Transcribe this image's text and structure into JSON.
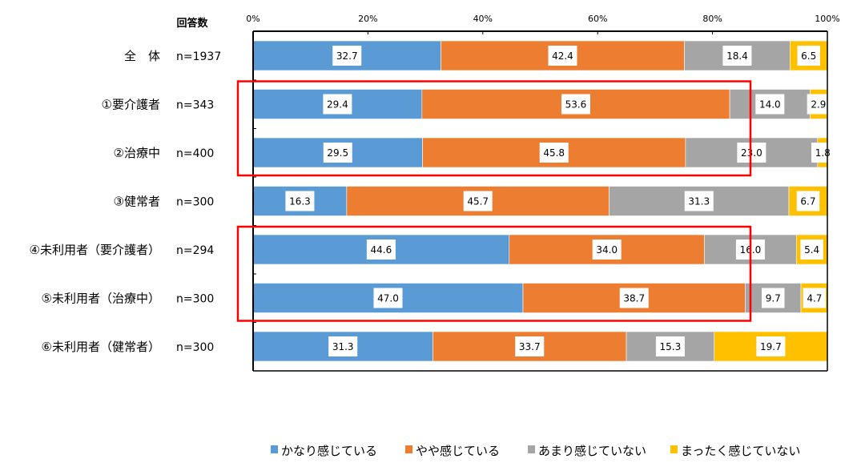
{
  "chart_data": {
    "type": "bar",
    "orientation": "horizontal-stacked-100",
    "n_header": "回答数",
    "categories": [
      "全　体",
      "①要介護者",
      "②治療中",
      "③健常者",
      "④未利用者（要介護者）",
      "⑤未利用者（治療中）",
      "⑥未利用者（健常者）"
    ],
    "n_labels": [
      "n=1937",
      "n=343",
      "n=400",
      "n=300",
      "n=294",
      "n=300",
      "n=300"
    ],
    "series": [
      {
        "name": "かなり感じている",
        "color": "#5B9BD5",
        "values": [
          32.7,
          29.4,
          29.5,
          16.3,
          44.6,
          47.0,
          31.3
        ]
      },
      {
        "name": "やや感じている",
        "color": "#ED7D31",
        "values": [
          42.4,
          53.6,
          45.8,
          45.7,
          34.0,
          38.7,
          33.7
        ]
      },
      {
        "name": "あまり感じていない",
        "color": "#A5A5A5",
        "values": [
          18.4,
          14.0,
          23.0,
          31.3,
          16.0,
          9.7,
          15.3
        ]
      },
      {
        "name": "まったく感じていない",
        "color": "#FFC000",
        "values": [
          6.5,
          2.9,
          1.8,
          6.7,
          5.4,
          4.7,
          19.7
        ]
      }
    ],
    "xticks": [
      "0%",
      "20%",
      "40%",
      "60%",
      "80%",
      "100%"
    ],
    "xlim": [
      0,
      100
    ],
    "legend": "bottom",
    "highlight_groups": [
      [
        1,
        2
      ],
      [
        4,
        5
      ]
    ],
    "highlight_color": "#FF0000"
  }
}
